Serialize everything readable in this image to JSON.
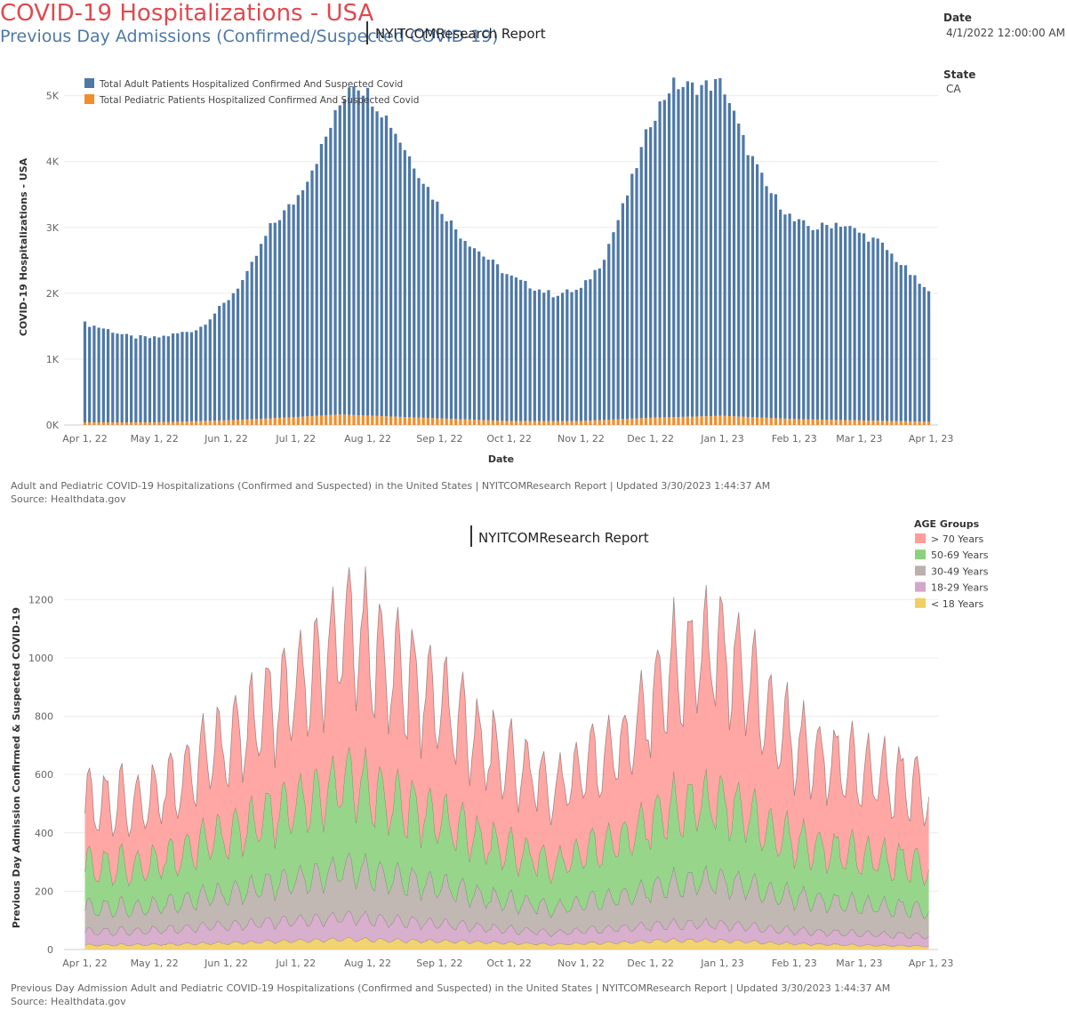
{
  "dashboard": {
    "title": "COVID-19 Hospitalizations - USA",
    "subtitle": "NYITCOMResearch Report",
    "filters": [
      {
        "label": "Date",
        "value": "4/1/2022 12:00:00 AM .."
      },
      {
        "label": "State",
        "value": "CA"
      }
    ]
  },
  "chart1_caption": {
    "line1": "Adult and Pediatric COVID-19 Hospitalizations (Confirmed and Suspected) in the United States | NYITCOMResearch Report | Updated 3/30/2023 1:44:37 AM",
    "line2": "Source: Healthdata.gov"
  },
  "section2": {
    "title": "Previous Day Admissions (Confirmed/Suspected COVID-19)",
    "subtitle": "NYITCOMResearch Report"
  },
  "chart2_caption": {
    "line1": "Previous Day Admission Adult and Pediatric COVID-19 Hospitalizations (Confirmed and Suspected) in the United States | NYITCOMResearch Report | Updated 3/30/2023 1:44:37 AM",
    "line2": "Source: Healthdata.gov"
  },
  "chart_data": [
    {
      "type": "bar",
      "stacked": true,
      "xlabel": "Date",
      "ylabel": "COVID-19 Hospitalizations - USA",
      "x_range": [
        "2022-04-01",
        "2023-03-31"
      ],
      "ylim": [
        0,
        5400
      ],
      "y_ticks": [
        {
          "value": 0,
          "label": "0K"
        },
        {
          "value": 1000,
          "label": "1K"
        },
        {
          "value": 2000,
          "label": "2K"
        },
        {
          "value": 3000,
          "label": "3K"
        },
        {
          "value": 4000,
          "label": "4K"
        },
        {
          "value": 5000,
          "label": "5K"
        }
      ],
      "x_ticks": [
        {
          "date": "2022-04-01",
          "label": "Apr 1, 22"
        },
        {
          "date": "2022-05-01",
          "label": "May 1, 22"
        },
        {
          "date": "2022-06-01",
          "label": "Jun 1, 22"
        },
        {
          "date": "2022-07-01",
          "label": "Jul 1, 22"
        },
        {
          "date": "2022-08-01",
          "label": "Aug 1, 22"
        },
        {
          "date": "2022-09-01",
          "label": "Sep 1, 22"
        },
        {
          "date": "2022-10-01",
          "label": "Oct 1, 22"
        },
        {
          "date": "2022-11-01",
          "label": "Nov 1, 22"
        },
        {
          "date": "2022-12-01",
          "label": "Dec 1, 22"
        },
        {
          "date": "2023-01-01",
          "label": "Jan 1, 23"
        },
        {
          "date": "2023-02-01",
          "label": "Feb 1, 23"
        },
        {
          "date": "2023-03-01",
          "label": "Mar 1, 23"
        },
        {
          "date": "2023-04-01",
          "label": "Apr 1, 23"
        }
      ],
      "legend": {
        "placement": "top-left"
      },
      "gridlines": true,
      "bar_interval_days": 2,
      "series": [
        {
          "name": "Total Adult Patients Hospitalized Confirmed And Suspected Covid",
          "color": "#4e79a7",
          "anchors": [
            [
              "2022-04-01",
              1500
            ],
            [
              "2022-04-10",
              1420
            ],
            [
              "2022-04-20",
              1300
            ],
            [
              "2022-05-01",
              1280
            ],
            [
              "2022-05-10",
              1330
            ],
            [
              "2022-05-20",
              1400
            ],
            [
              "2022-06-01",
              1800
            ],
            [
              "2022-06-10",
              2200
            ],
            [
              "2022-06-20",
              2900
            ],
            [
              "2022-07-01",
              3300
            ],
            [
              "2022-07-10",
              3900
            ],
            [
              "2022-07-20",
              4700
            ],
            [
              "2022-07-25",
              5100
            ],
            [
              "2022-08-01",
              4900
            ],
            [
              "2022-08-10",
              4500
            ],
            [
              "2022-08-20",
              3900
            ],
            [
              "2022-09-01",
              3200
            ],
            [
              "2022-09-10",
              2800
            ],
            [
              "2022-09-20",
              2500
            ],
            [
              "2022-10-01",
              2200
            ],
            [
              "2022-10-10",
              2050
            ],
            [
              "2022-10-20",
              1920
            ],
            [
              "2022-11-01",
              2000
            ],
            [
              "2022-11-10",
              2400
            ],
            [
              "2022-11-20",
              3300
            ],
            [
              "2022-12-01",
              4500
            ],
            [
              "2022-12-10",
              5050
            ],
            [
              "2022-12-20",
              5000
            ],
            [
              "2023-01-01",
              5050
            ],
            [
              "2023-01-10",
              4200
            ],
            [
              "2023-01-20",
              3500
            ],
            [
              "2023-02-01",
              3000
            ],
            [
              "2023-02-10",
              2900
            ],
            [
              "2023-02-20",
              3000
            ],
            [
              "2023-03-01",
              2850
            ],
            [
              "2023-03-10",
              2700
            ],
            [
              "2023-03-20",
              2350
            ],
            [
              "2023-03-31",
              1950
            ]
          ]
        },
        {
          "name": "Total Pediatric Patients Hospitalized Confirmed And Suspected Covid",
          "color": "#f28e2b",
          "anchors": [
            [
              "2022-04-01",
              40
            ],
            [
              "2022-05-01",
              40
            ],
            [
              "2022-06-01",
              70
            ],
            [
              "2022-07-01",
              120
            ],
            [
              "2022-07-20",
              160
            ],
            [
              "2022-08-10",
              130
            ],
            [
              "2022-09-01",
              100
            ],
            [
              "2022-10-01",
              60
            ],
            [
              "2022-11-01",
              60
            ],
            [
              "2022-12-01",
              110
            ],
            [
              "2023-01-01",
              140
            ],
            [
              "2023-02-01",
              90
            ],
            [
              "2023-03-01",
              70
            ],
            [
              "2023-03-31",
              50
            ]
          ]
        }
      ]
    },
    {
      "type": "area",
      "stacked": true,
      "xlabel": "",
      "ylabel": "Previous Day Admission Confirmed & Suspected COVID-19",
      "x_range": [
        "2022-04-01",
        "2023-03-31"
      ],
      "ylim": [
        0,
        1320
      ],
      "y_ticks": [
        {
          "value": 0,
          "label": "0"
        },
        {
          "value": 200,
          "label": "200"
        },
        {
          "value": 400,
          "label": "400"
        },
        {
          "value": 600,
          "label": "600"
        },
        {
          "value": 800,
          "label": "800"
        },
        {
          "value": 1000,
          "label": "1000"
        },
        {
          "value": 1200,
          "label": "1200"
        }
      ],
      "x_ticks": [
        {
          "date": "2022-04-01",
          "label": "Apr 1, 22"
        },
        {
          "date": "2022-05-01",
          "label": "May 1, 22"
        },
        {
          "date": "2022-06-01",
          "label": "Jun 1, 22"
        },
        {
          "date": "2022-07-01",
          "label": "Jul 1, 22"
        },
        {
          "date": "2022-08-01",
          "label": "Aug 1, 22"
        },
        {
          "date": "2022-09-01",
          "label": "Sep 1, 22"
        },
        {
          "date": "2022-10-01",
          "label": "Oct 1, 22"
        },
        {
          "date": "2022-11-01",
          "label": "Nov 1, 22"
        },
        {
          "date": "2022-12-01",
          "label": "Dec 1, 22"
        },
        {
          "date": "2023-01-01",
          "label": "Jan 1, 23"
        },
        {
          "date": "2023-02-01",
          "label": "Feb 1, 23"
        },
        {
          "date": "2023-03-01",
          "label": "Mar 1, 23"
        },
        {
          "date": "2023-04-01",
          "label": "Apr 1, 23"
        }
      ],
      "legend": {
        "title": "AGE Groups",
        "placement": "top-right"
      },
      "gridlines": true,
      "series": [
        {
          "name": "< 18 Years",
          "color": "#f1ce63",
          "anchors": [
            [
              "2022-04-01",
              15
            ],
            [
              "2022-05-01",
              18
            ],
            [
              "2022-06-01",
              22
            ],
            [
              "2022-07-01",
              30
            ],
            [
              "2022-07-25",
              35
            ],
            [
              "2022-08-20",
              30
            ],
            [
              "2022-09-20",
              25
            ],
            [
              "2022-10-20",
              18
            ],
            [
              "2022-11-20",
              25
            ],
            [
              "2022-12-10",
              32
            ],
            [
              "2023-01-01",
              30
            ],
            [
              "2023-02-01",
              20
            ],
            [
              "2023-03-01",
              15
            ],
            [
              "2023-03-31",
              12
            ]
          ]
        },
        {
          "name": "18-29 Years",
          "color": "#d4a6c8",
          "anchors": [
            [
              "2022-04-01",
              45
            ],
            [
              "2022-05-01",
              50
            ],
            [
              "2022-06-01",
              60
            ],
            [
              "2022-07-01",
              70
            ],
            [
              "2022-07-25",
              75
            ],
            [
              "2022-08-20",
              65
            ],
            [
              "2022-09-20",
              50
            ],
            [
              "2022-10-20",
              40
            ],
            [
              "2022-11-20",
              50
            ],
            [
              "2022-12-10",
              55
            ],
            [
              "2023-01-01",
              55
            ],
            [
              "2023-02-01",
              45
            ],
            [
              "2023-03-01",
              40
            ],
            [
              "2023-03-31",
              35
            ]
          ]
        },
        {
          "name": "30-49 Years",
          "color": "#bab0ac",
          "anchors": [
            [
              "2022-04-01",
              80
            ],
            [
              "2022-05-01",
              85
            ],
            [
              "2022-06-01",
              110
            ],
            [
              "2022-07-01",
              140
            ],
            [
              "2022-07-25",
              165
            ],
            [
              "2022-08-20",
              140
            ],
            [
              "2022-09-20",
              105
            ],
            [
              "2022-10-20",
              85
            ],
            [
              "2022-11-20",
              110
            ],
            [
              "2022-12-10",
              140
            ],
            [
              "2023-01-01",
              150
            ],
            [
              "2023-02-01",
              115
            ],
            [
              "2023-03-01",
              100
            ],
            [
              "2023-03-31",
              90
            ]
          ]
        },
        {
          "name": "50-69 Years",
          "color": "#8cd17d",
          "anchors": [
            [
              "2022-04-01",
              140
            ],
            [
              "2022-05-01",
              150
            ],
            [
              "2022-06-01",
              200
            ],
            [
              "2022-07-01",
              260
            ],
            [
              "2022-07-25",
              300
            ],
            [
              "2022-08-20",
              250
            ],
            [
              "2022-09-20",
              190
            ],
            [
              "2022-10-20",
              150
            ],
            [
              "2022-11-20",
              200
            ],
            [
              "2022-12-10",
              260
            ],
            [
              "2023-01-01",
              270
            ],
            [
              "2023-02-01",
              190
            ],
            [
              "2023-03-01",
              170
            ],
            [
              "2023-03-31",
              150
            ]
          ]
        },
        {
          "name": "> 70 Years",
          "color": "#ff9d9a",
          "anchors": [
            [
              "2022-04-01",
              210
            ],
            [
              "2022-05-01",
              230
            ],
            [
              "2022-06-01",
              310
            ],
            [
              "2022-07-01",
              400
            ],
            [
              "2022-07-25",
              510
            ],
            [
              "2022-08-20",
              430
            ],
            [
              "2022-09-20",
              320
            ],
            [
              "2022-10-20",
              260
            ],
            [
              "2022-11-20",
              320
            ],
            [
              "2022-12-10",
              470
            ],
            [
              "2023-01-01",
              520
            ],
            [
              "2023-02-01",
              330
            ],
            [
              "2023-03-01",
              290
            ],
            [
              "2023-03-31",
              260
            ]
          ]
        }
      ]
    }
  ]
}
